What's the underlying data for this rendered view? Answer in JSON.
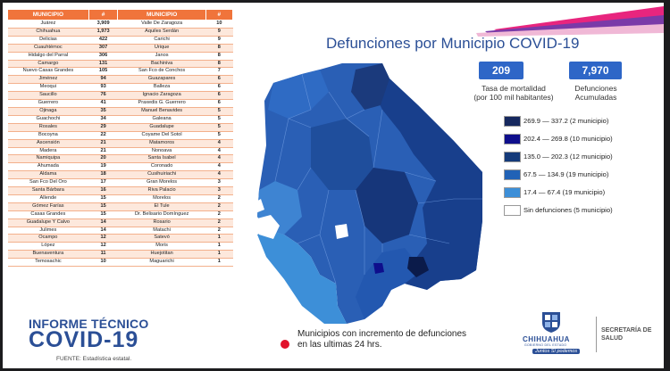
{
  "table": {
    "headers": [
      "MUNICIPIO",
      "#",
      "MUNICIPIO",
      "#"
    ],
    "rows": [
      [
        "Juárez",
        "3,909",
        "Valle De Zaragoza",
        "10"
      ],
      [
        "Chihuahua",
        "1,973",
        "Aquiles Serdán",
        "9"
      ],
      [
        "Delicias",
        "422",
        "Carichi",
        "9"
      ],
      [
        "Cuauhtémoc",
        "307",
        "Urique",
        "8"
      ],
      [
        "Hidalgo del Parral",
        "306",
        "Janos",
        "8"
      ],
      [
        "Camargo",
        "131",
        "Bachiniva",
        "8"
      ],
      [
        "Nuevo Casas Grandes",
        "105",
        "San Fco de Conchos",
        "7"
      ],
      [
        "Jiménez",
        "94",
        "Guazapares",
        "6"
      ],
      [
        "Meoqui",
        "93",
        "Balleza",
        "6"
      ],
      [
        "Saucillo",
        "76",
        "Ignacio Zaragoza",
        "6"
      ],
      [
        "Guerrero",
        "41",
        "Praxedis G. Guerrero",
        "6"
      ],
      [
        "Ojinaga",
        "35",
        "Manuel Benavides",
        "5"
      ],
      [
        "Guachochi",
        "34",
        "Galeana",
        "5"
      ],
      [
        "Rosales",
        "29",
        "Guadalupe",
        "5"
      ],
      [
        "Bocoyna",
        "22",
        "Coyame Del Sotol",
        "5"
      ],
      [
        "Ascensión",
        "21",
        "Matamoros",
        "4"
      ],
      [
        "Madera",
        "21",
        "Nonoava",
        "4"
      ],
      [
        "Namiquipa",
        "20",
        "Santa Isabel",
        "4"
      ],
      [
        "Ahumada",
        "19",
        "Coronado",
        "4"
      ],
      [
        "Aldama",
        "18",
        "Cusihuiriachi",
        "4"
      ],
      [
        "San Fco Del Oro",
        "17",
        "Gran Morelos",
        "3"
      ],
      [
        "Santa Bárbara",
        "16",
        "Riva Palacio",
        "3"
      ],
      [
        "Allende",
        "15",
        "Morelos",
        "2"
      ],
      [
        "Gómez Farías",
        "15",
        "El Tule",
        "2"
      ],
      [
        "Casas Grandes",
        "15",
        "Dr. Belisario Domínguez",
        "2"
      ],
      [
        "Guadalupe Y Calvo",
        "14",
        "Rosario",
        "2"
      ],
      [
        "Julimes",
        "14",
        "Matachi",
        "2"
      ],
      [
        "Ocampo",
        "12",
        "Satevó",
        "1"
      ],
      [
        "López",
        "12",
        "Moris",
        "1"
      ],
      [
        "Buenaventura",
        "11",
        "Huejotitan",
        "1"
      ],
      [
        "Temosachic",
        "10",
        "Maguarichi",
        "1"
      ]
    ]
  },
  "title": "Defunciones por Municipio COVID-19",
  "stats": {
    "rate_value": "209",
    "rate_label_1": "Tasa de mortalidad",
    "rate_label_2": "(por 100 mil habitantes)",
    "total_value": "7,970",
    "total_label_1": "Defunciones",
    "total_label_2": "Acumuladas"
  },
  "legend": [
    {
      "label": "269.9 — 337.2 (2 municipio)",
      "color": "#16285e"
    },
    {
      "label": "202.4 — 269.8 (10 municipio)",
      "color": "#0e0e8c"
    },
    {
      "label": "135.0 — 202.3 (12 municipio)",
      "color": "#143a7a"
    },
    {
      "label": "67.5 — 134.9 (19 municipio)",
      "color": "#2162b6"
    },
    {
      "label": "17.4 — 67.4 (19 municipio)",
      "color": "#3d8fd8"
    },
    {
      "label": "Sin defunciones (5 municipio)",
      "color": "#ffffff"
    }
  ],
  "footer": {
    "informe": "INFORME TÉCNICO",
    "covid": "COVID-19",
    "fuente": "FUENTE: Estadística estatal.",
    "note": "Municipios con incremento de defunciones en las ultimas 24 hrs.",
    "chihuahua": "CHIHUAHUA",
    "gobierno": "GOBIERNO DEL ESTADO",
    "slogan": "Juntos Sí podemos",
    "secretaria": "SECRETARÍA DE SALUD"
  },
  "colors": {
    "table_header": "#f0743b",
    "brand_blue": "#2b4f96",
    "stat_box": "#2e66c7",
    "highlight_dot": "#e1122b"
  }
}
